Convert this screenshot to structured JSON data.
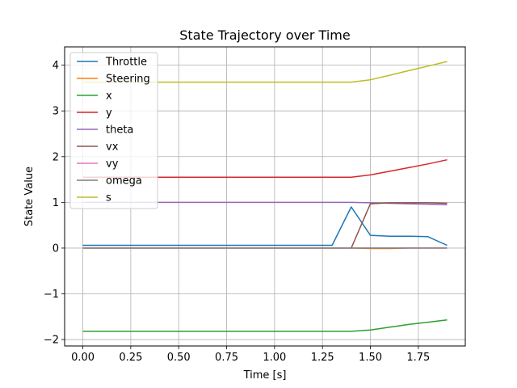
{
  "chart_data": {
    "type": "line",
    "title": "State Trajectory over Time",
    "xlabel": "Time [s]",
    "ylabel": "State Value",
    "xlim": [
      -0.095,
      1.995
    ],
    "ylim": [
      -2.14,
      4.4
    ],
    "xticks": [
      0.0,
      0.25,
      0.5,
      0.75,
      1.0,
      1.25,
      1.5,
      1.75
    ],
    "xtick_labels": [
      "0.00",
      "0.25",
      "0.50",
      "0.75",
      "1.00",
      "1.25",
      "1.50",
      "1.75"
    ],
    "yticks": [
      -2,
      -1,
      0,
      1,
      2,
      3,
      4
    ],
    "ytick_labels": [
      "−2",
      "−1",
      "0",
      "1",
      "2",
      "3",
      "4"
    ],
    "grid": true,
    "legend_position": "top-left",
    "x": [
      0.0,
      0.1,
      0.2,
      0.3,
      0.4,
      0.5,
      0.6,
      0.7,
      0.8,
      0.9,
      1.0,
      1.1,
      1.2,
      1.3,
      1.4,
      1.5,
      1.6,
      1.7,
      1.8,
      1.9
    ],
    "series": [
      {
        "name": "Throttle",
        "color": "#1f77b4",
        "values": [
          0.06,
          0.06,
          0.06,
          0.06,
          0.06,
          0.06,
          0.06,
          0.06,
          0.06,
          0.06,
          0.06,
          0.06,
          0.06,
          0.06,
          0.9,
          0.28,
          0.26,
          0.26,
          0.25,
          0.06
        ]
      },
      {
        "name": "Steering",
        "color": "#ff7f0e",
        "values": [
          0.0,
          0.0,
          0.0,
          0.0,
          0.0,
          0.0,
          0.0,
          0.0,
          0.0,
          0.0,
          0.0,
          0.0,
          0.0,
          0.0,
          0.0,
          -0.01,
          -0.01,
          0.0,
          0.0,
          0.0
        ]
      },
      {
        "name": "x",
        "color": "#2ca02c",
        "values": [
          -1.82,
          -1.82,
          -1.82,
          -1.82,
          -1.82,
          -1.82,
          -1.82,
          -1.82,
          -1.82,
          -1.82,
          -1.82,
          -1.82,
          -1.82,
          -1.82,
          -1.82,
          -1.79,
          -1.73,
          -1.67,
          -1.62,
          -1.57
        ]
      },
      {
        "name": "y",
        "color": "#d62728",
        "values": [
          1.55,
          1.55,
          1.55,
          1.55,
          1.55,
          1.55,
          1.55,
          1.55,
          1.55,
          1.55,
          1.55,
          1.55,
          1.55,
          1.55,
          1.55,
          1.6,
          1.68,
          1.76,
          1.84,
          1.93
        ]
      },
      {
        "name": "theta",
        "color": "#9467bd",
        "values": [
          1.0,
          1.0,
          1.0,
          1.0,
          1.0,
          1.0,
          1.0,
          1.0,
          1.0,
          1.0,
          1.0,
          1.0,
          1.0,
          1.0,
          1.0,
          0.99,
          0.98,
          0.97,
          0.96,
          0.95
        ]
      },
      {
        "name": "vx",
        "color": "#8c564b",
        "values": [
          0.0,
          0.0,
          0.0,
          0.0,
          0.0,
          0.0,
          0.0,
          0.0,
          0.0,
          0.0,
          0.0,
          0.0,
          0.0,
          0.0,
          0.0,
          0.97,
          0.99,
          0.99,
          0.99,
          0.98
        ]
      },
      {
        "name": "vy",
        "color": "#e377c2",
        "values": [
          0.0,
          0.0,
          0.0,
          0.0,
          0.0,
          0.0,
          0.0,
          0.0,
          0.0,
          0.0,
          0.0,
          0.0,
          0.0,
          0.0,
          0.0,
          0.0,
          0.0,
          0.0,
          0.0,
          0.0
        ]
      },
      {
        "name": "omega",
        "color": "#7f7f7f",
        "values": [
          0.0,
          0.0,
          0.0,
          0.0,
          0.0,
          0.0,
          0.0,
          0.0,
          0.0,
          0.0,
          0.0,
          0.0,
          0.0,
          0.0,
          0.0,
          0.0,
          0.0,
          0.0,
          0.0,
          0.0
        ]
      },
      {
        "name": "s",
        "color": "#bcbd22",
        "values": [
          3.63,
          3.63,
          3.63,
          3.63,
          3.63,
          3.63,
          3.63,
          3.63,
          3.63,
          3.63,
          3.63,
          3.63,
          3.63,
          3.63,
          3.63,
          3.68,
          3.78,
          3.88,
          3.98,
          4.08
        ]
      }
    ]
  }
}
